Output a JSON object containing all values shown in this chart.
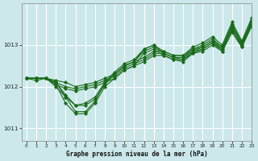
{
  "bg_color": "#cce8ea",
  "grid_color": "#ffffff",
  "line_color": "#1a6b1a",
  "title": "Graphe pression niveau de la mer (hPa)",
  "xlim": [
    -0.5,
    23
  ],
  "ylim": [
    1010.7,
    1014.0
  ],
  "yticks": [
    1011,
    1012,
    1013
  ],
  "xticks": [
    0,
    1,
    2,
    3,
    4,
    5,
    6,
    7,
    8,
    9,
    10,
    11,
    12,
    13,
    14,
    15,
    16,
    17,
    18,
    19,
    20,
    21,
    22,
    23
  ],
  "series": [
    [
      1012.2,
      1012.2,
      1012.2,
      1012.15,
      1012.1,
      1012.0,
      1012.05,
      1012.1,
      1012.2,
      1012.3,
      1012.5,
      1012.6,
      1012.7,
      1012.85,
      1012.85,
      1012.75,
      1012.75,
      1012.9,
      1012.95,
      1013.1,
      1012.95,
      1013.45,
      1013.05,
      1013.55
    ],
    [
      1012.2,
      1012.2,
      1012.2,
      1012.1,
      1012.0,
      1011.95,
      1012.0,
      1012.05,
      1012.15,
      1012.25,
      1012.45,
      1012.55,
      1012.65,
      1012.8,
      1012.8,
      1012.7,
      1012.7,
      1012.85,
      1012.9,
      1013.05,
      1012.9,
      1013.35,
      1013.0,
      1013.5
    ],
    [
      1012.2,
      1012.2,
      1012.2,
      1012.05,
      1011.95,
      1011.9,
      1011.95,
      1012.0,
      1012.1,
      1012.2,
      1012.4,
      1012.5,
      1012.6,
      1012.75,
      1012.75,
      1012.65,
      1012.65,
      1012.8,
      1012.85,
      1013.0,
      1012.85,
      1013.3,
      1012.95,
      1013.45
    ],
    [
      1012.2,
      1012.2,
      1012.2,
      1012.1,
      1011.8,
      1011.55,
      1011.6,
      1011.75,
      1012.1,
      1012.35,
      1012.55,
      1012.65,
      1012.9,
      1013.0,
      1012.85,
      1012.75,
      1012.75,
      1012.95,
      1013.05,
      1013.2,
      1013.0,
      1013.55,
      1013.1,
      1013.65
    ],
    [
      1012.2,
      1012.2,
      1012.2,
      1012.1,
      1011.75,
      1011.55,
      1011.55,
      1011.7,
      1012.05,
      1012.3,
      1012.5,
      1012.6,
      1012.85,
      1012.95,
      1012.8,
      1012.7,
      1012.7,
      1012.9,
      1013.0,
      1013.15,
      1012.95,
      1013.5,
      1013.05,
      1013.6
    ],
    [
      1012.2,
      1012.2,
      1012.2,
      1012.05,
      1011.6,
      1011.35,
      1011.35,
      1011.6,
      1012.0,
      1012.2,
      1012.4,
      1012.5,
      1012.8,
      1012.9,
      1012.75,
      1012.65,
      1012.6,
      1012.8,
      1012.9,
      1013.05,
      1012.85,
      1013.4,
      1012.95,
      1013.5
    ],
    [
      1012.2,
      1012.15,
      1012.2,
      1012.0,
      1011.75,
      1011.4,
      1011.4,
      1011.65,
      1012.1,
      1012.3,
      1012.5,
      1012.6,
      1012.9,
      1013.0,
      1012.8,
      1012.7,
      1012.65,
      1012.85,
      1012.95,
      1013.1,
      1012.9,
      1013.45,
      1013.0,
      1013.55
    ]
  ],
  "marker": "D",
  "markersize": 2.2,
  "linewidth": 0.8
}
